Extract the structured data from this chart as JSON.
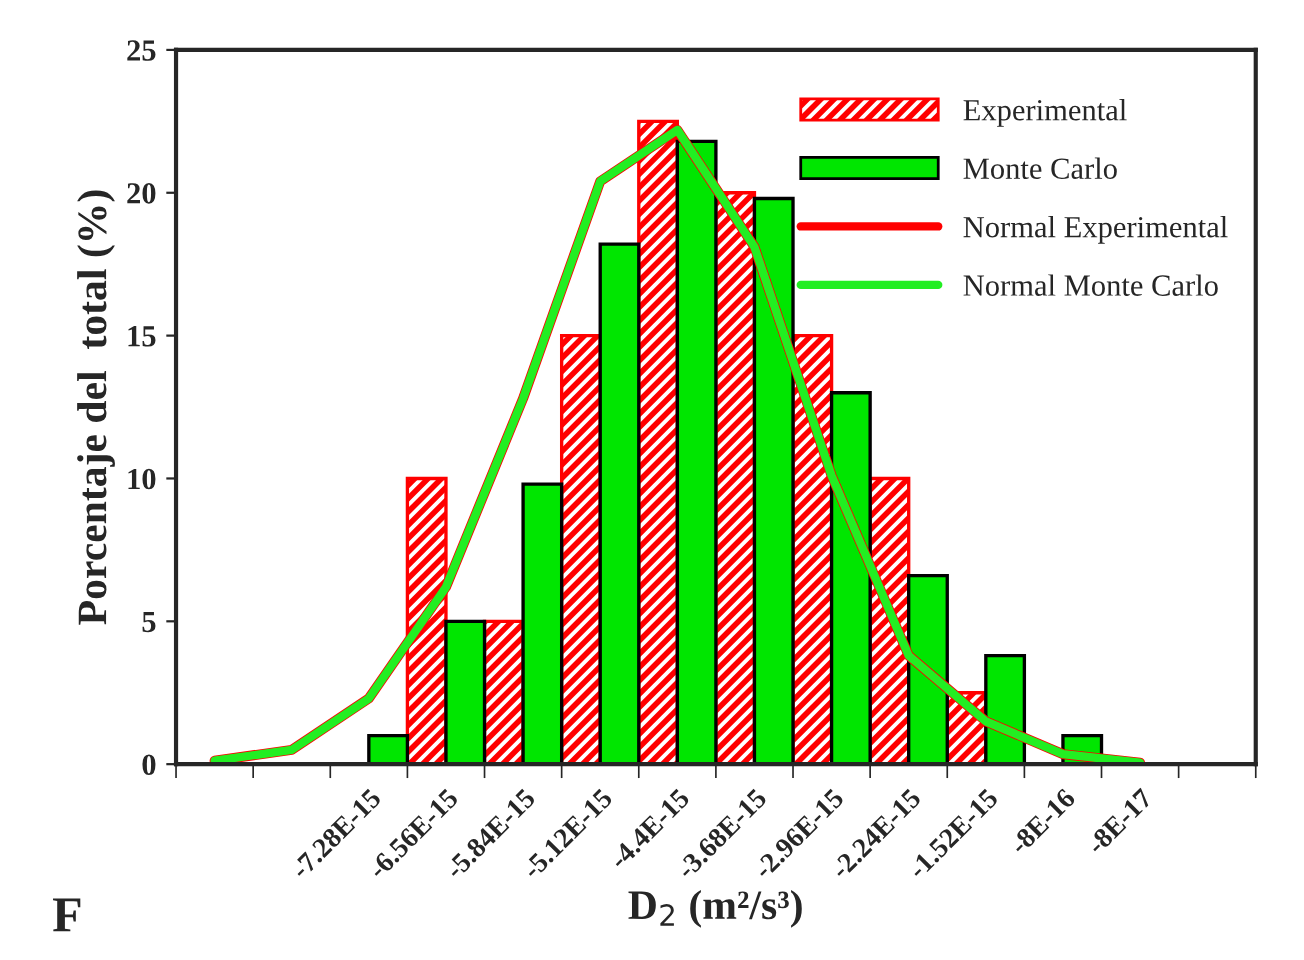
{
  "chart_data": {
    "type": "bar",
    "xlabel": "D$_{2}$ (m²/s³)",
    "ylabel": "Porcentaje del  total (%)",
    "categories": [
      null,
      null,
      "-7.28E-15",
      "-6.56E-15",
      "-5.84E-15",
      "-5.12E-15",
      "-4.4E-15",
      "-3.68E-15",
      "-2.96E-15",
      "-2.24E-15",
      "-1.52E-15",
      "-8E-16",
      "-8E-17",
      null
    ],
    "series": [
      {
        "name": "Experimental",
        "color": "#ff0000",
        "values": [
          0,
          0,
          0,
          10,
          5,
          15,
          22.5,
          20,
          15,
          10,
          2.5,
          0,
          0,
          0
        ]
      },
      {
        "name": "Monte Carlo",
        "color": "#00e600",
        "values": [
          0,
          0,
          1,
          5,
          9.8,
          18.2,
          21.8,
          19.8,
          13,
          6.6,
          3.8,
          1,
          0,
          0
        ]
      },
      {
        "name": "Normal Experimental",
        "type": "line",
        "color": "#ff0000",
        "values": [
          0.12,
          0.5,
          2.3,
          6.2,
          12.8,
          20.4,
          22.2,
          18.1,
          10.1,
          3.8,
          1.5,
          0.35,
          0.05,
          null
        ]
      },
      {
        "name": "Normal Monte Carlo",
        "type": "line",
        "color": "#22ee22",
        "values": [
          0.12,
          0.5,
          2.3,
          6.2,
          12.8,
          20.4,
          22.2,
          18.1,
          10.1,
          3.8,
          1.5,
          0.35,
          0.05,
          null
        ]
      }
    ],
    "ylim": [
      0,
      25
    ],
    "yticks": [
      0,
      5,
      10,
      15,
      20,
      25
    ],
    "grid": false,
    "legend": "top right",
    "annotations": [
      "F"
    ]
  }
}
